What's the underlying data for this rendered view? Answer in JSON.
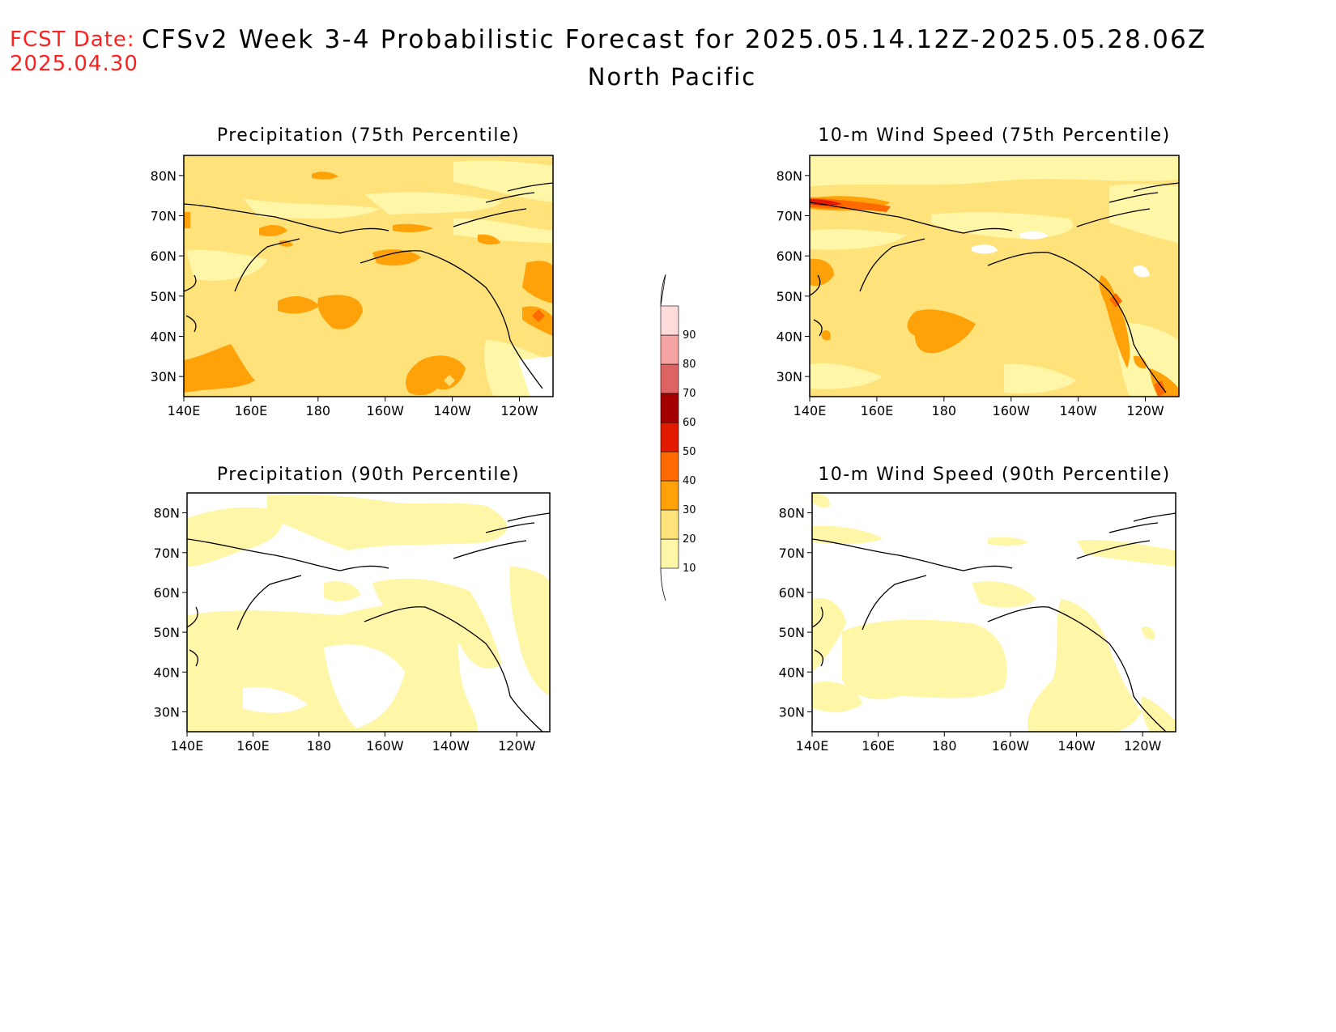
{
  "header": {
    "fcst_label": "FCST Date:",
    "fcst_date": "2025.04.30",
    "title": "CFSv2 Week 3-4 Probabilistic Forecast for 2025.05.14.12Z-2025.05.28.06Z",
    "subtitle": "North Pacific"
  },
  "axes": {
    "lat_ticks": [
      "80N",
      "70N",
      "60N",
      "50N",
      "40N",
      "30N"
    ],
    "lon_ticks": [
      "140E",
      "160E",
      "180",
      "160W",
      "140W",
      "120W"
    ]
  },
  "colorbar": {
    "levels": [
      "10",
      "20",
      "30",
      "40",
      "50",
      "60",
      "70",
      "80",
      "90"
    ],
    "colors": [
      "#fff6a8",
      "#ffe27a",
      "#ffa20a",
      "#ff6a00",
      "#e21a00",
      "#a50000",
      "#de6464",
      "#f5a3a3",
      "#ffdcdc"
    ]
  },
  "panels": [
    {
      "title": "Precipitation (75th Percentile)",
      "variable": "precipitation",
      "percentile": "75th"
    },
    {
      "title": "10-m Wind Speed (75th Percentile)",
      "variable": "wind-speed",
      "percentile": "75th"
    },
    {
      "title": "Precipitation (90th Percentile)",
      "variable": "precipitation",
      "percentile": "90th"
    },
    {
      "title": "10-m Wind Speed (90th Percentile)",
      "variable": "wind-speed",
      "percentile": "90th"
    }
  ]
}
